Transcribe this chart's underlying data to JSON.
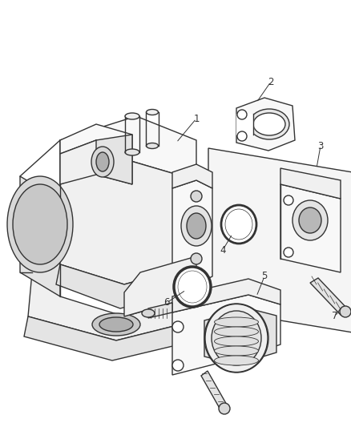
{
  "background_color": "#ffffff",
  "line_color": "#333333",
  "line_width": 1.0,
  "label_color": "#333333",
  "label_fontsize": 8.5,
  "fig_width": 4.39,
  "fig_height": 5.33,
  "dpi": 100,
  "face_light": "#f8f8f8",
  "face_mid": "#f0f0f0",
  "face_dark": "#e4e4e4",
  "face_darker": "#d8d8d8"
}
